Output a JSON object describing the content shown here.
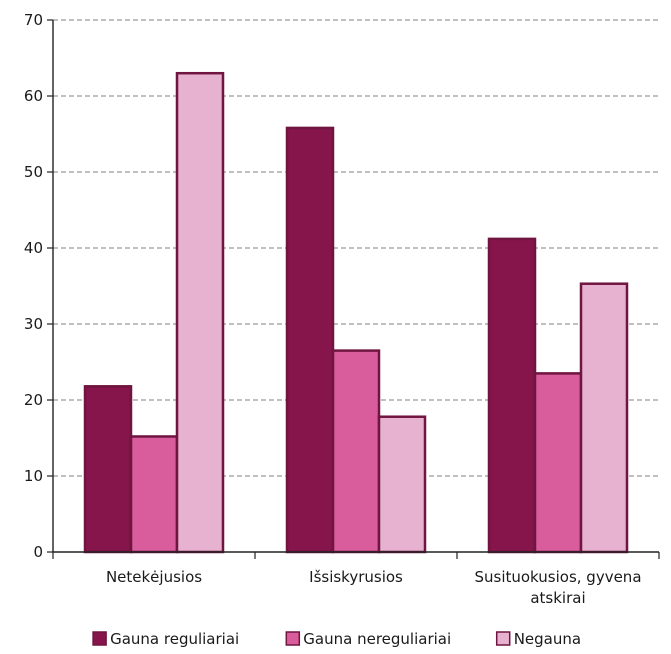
{
  "chart_data": {
    "type": "bar",
    "categories": [
      "Netekėjusios",
      "Išsiskyrusios",
      "Susituokusios, gyvena atskirai"
    ],
    "series": [
      {
        "name": "Gauna reguliariai",
        "values": [
          21.8,
          55.8,
          41.2
        ],
        "color": "#85154b"
      },
      {
        "name": "Gauna nereguliariai",
        "values": [
          15.2,
          26.5,
          23.5
        ],
        "color": "#d95d9c"
      },
      {
        "name": "Negauna",
        "values": [
          63.0,
          17.8,
          35.3
        ],
        "color": "#e6b2d0"
      }
    ],
    "bar_outline_color": "#701440",
    "ylim": [
      0,
      70
    ],
    "yticks": [
      0,
      10,
      20,
      30,
      40,
      50,
      60,
      70
    ],
    "grid": true,
    "legend_position": "bottom"
  }
}
